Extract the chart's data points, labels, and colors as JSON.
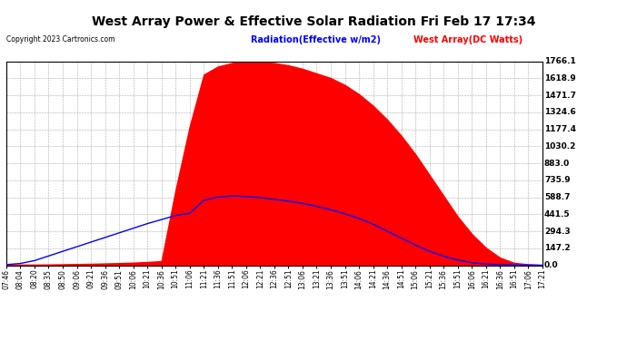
{
  "title": "West Array Power & Effective Solar Radiation Fri Feb 17 17:34",
  "copyright": "Copyright 2023 Cartronics.com",
  "legend_radiation": "Radiation(Effective w/m2)",
  "legend_west": "West Array(DC Watts)",
  "legend_radiation_color": "blue",
  "legend_west_color": "red",
  "background_color": "white",
  "y_ticks": [
    0.0,
    147.2,
    294.3,
    441.5,
    588.7,
    735.9,
    883.0,
    1030.2,
    1177.4,
    1324.6,
    1471.7,
    1618.9,
    1766.1
  ],
  "x_tick_labels": [
    "07:46",
    "08:04",
    "08:20",
    "08:35",
    "08:50",
    "09:06",
    "09:21",
    "09:36",
    "09:51",
    "10:06",
    "10:21",
    "10:36",
    "10:51",
    "11:06",
    "11:21",
    "11:36",
    "11:51",
    "12:06",
    "12:21",
    "12:36",
    "12:51",
    "13:06",
    "13:21",
    "13:36",
    "13:51",
    "14:06",
    "14:21",
    "14:36",
    "14:51",
    "15:06",
    "15:21",
    "15:36",
    "15:51",
    "16:06",
    "16:21",
    "16:36",
    "16:51",
    "17:06",
    "17:21"
  ],
  "radiation_data_y": [
    5,
    5,
    5,
    6,
    8,
    10,
    12,
    15,
    18,
    22,
    28,
    35,
    650,
    1200,
    1650,
    1720,
    1750,
    1766,
    1760,
    1750,
    1730,
    1700,
    1660,
    1620,
    1560,
    1480,
    1380,
    1260,
    1120,
    960,
    780,
    600,
    420,
    270,
    150,
    65,
    20,
    8,
    2
  ],
  "west_data_y": [
    5,
    15,
    40,
    80,
    120,
    160,
    200,
    240,
    280,
    320,
    360,
    395,
    430,
    450,
    560,
    590,
    600,
    595,
    585,
    570,
    555,
    535,
    510,
    480,
    445,
    405,
    355,
    295,
    235,
    175,
    120,
    78,
    45,
    22,
    10,
    5,
    2,
    1,
    0
  ]
}
